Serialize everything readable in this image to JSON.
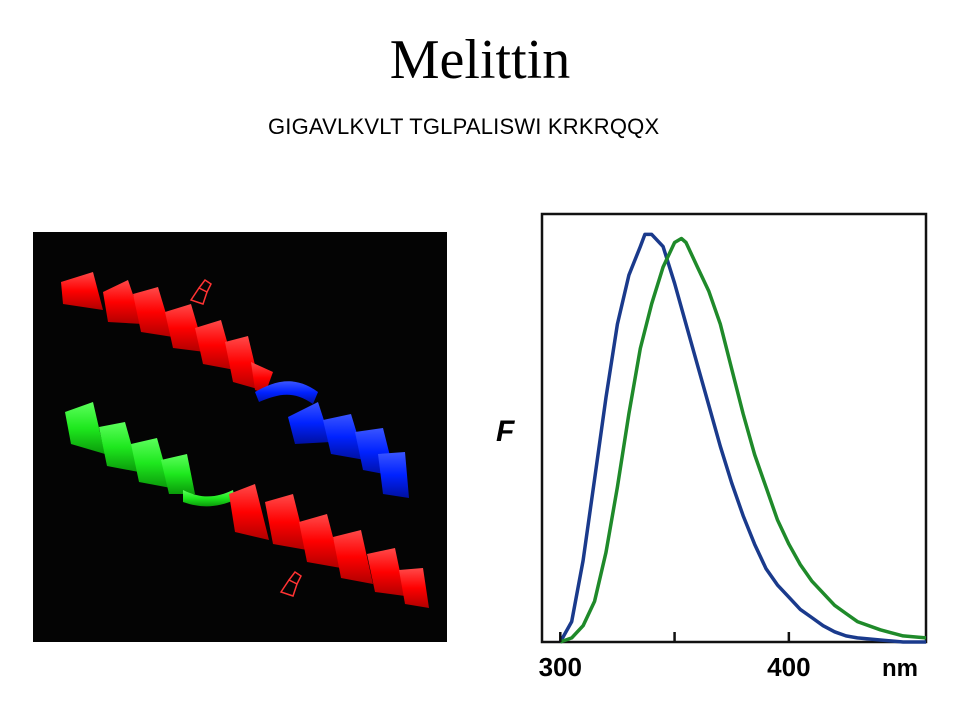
{
  "title": "Melittin",
  "sequence": "GIGAVLKVLT TGLPALISWI KRKRQQX",
  "structure_image": {
    "colors": {
      "background": "#040404",
      "helix_red": "#ff0000",
      "helix_blue": "#0022ff",
      "helix_green": "#1ee81e",
      "side_chain": "#ff3333"
    }
  },
  "chart_data": {
    "type": "line",
    "title": "",
    "ylabel": "F",
    "xlabel": "nm",
    "xlim": [
      292,
      460
    ],
    "ylim": [
      0,
      1.05
    ],
    "x_ticks": [
      300,
      350,
      400
    ],
    "x_tick_labels": [
      "300",
      "",
      "400"
    ],
    "grid": false,
    "series": [
      {
        "color": "#1a3a8c",
        "x": [
          300,
          305,
          310,
          315,
          320,
          325,
          330,
          335,
          337,
          340,
          345,
          350,
          355,
          360,
          365,
          370,
          375,
          380,
          385,
          390,
          395,
          400,
          405,
          410,
          415,
          420,
          425,
          430,
          440,
          450,
          460
        ],
        "y": [
          0.0,
          0.05,
          0.2,
          0.4,
          0.6,
          0.78,
          0.9,
          0.97,
          1.0,
          1.0,
          0.97,
          0.88,
          0.78,
          0.68,
          0.58,
          0.48,
          0.39,
          0.31,
          0.24,
          0.18,
          0.14,
          0.11,
          0.08,
          0.06,
          0.04,
          0.025,
          0.015,
          0.01,
          0.005,
          0.0,
          0.0
        ]
      },
      {
        "color": "#1f8a2a",
        "x": [
          300,
          305,
          310,
          315,
          320,
          325,
          330,
          335,
          340,
          345,
          350,
          353,
          355,
          360,
          365,
          370,
          375,
          380,
          385,
          390,
          395,
          400,
          405,
          410,
          415,
          420,
          425,
          430,
          440,
          450,
          460
        ],
        "y": [
          0.0,
          0.01,
          0.04,
          0.1,
          0.22,
          0.38,
          0.56,
          0.72,
          0.83,
          0.92,
          0.98,
          0.99,
          0.98,
          0.92,
          0.86,
          0.78,
          0.67,
          0.56,
          0.46,
          0.38,
          0.3,
          0.24,
          0.19,
          0.15,
          0.12,
          0.09,
          0.07,
          0.05,
          0.03,
          0.015,
          0.01
        ]
      }
    ]
  }
}
